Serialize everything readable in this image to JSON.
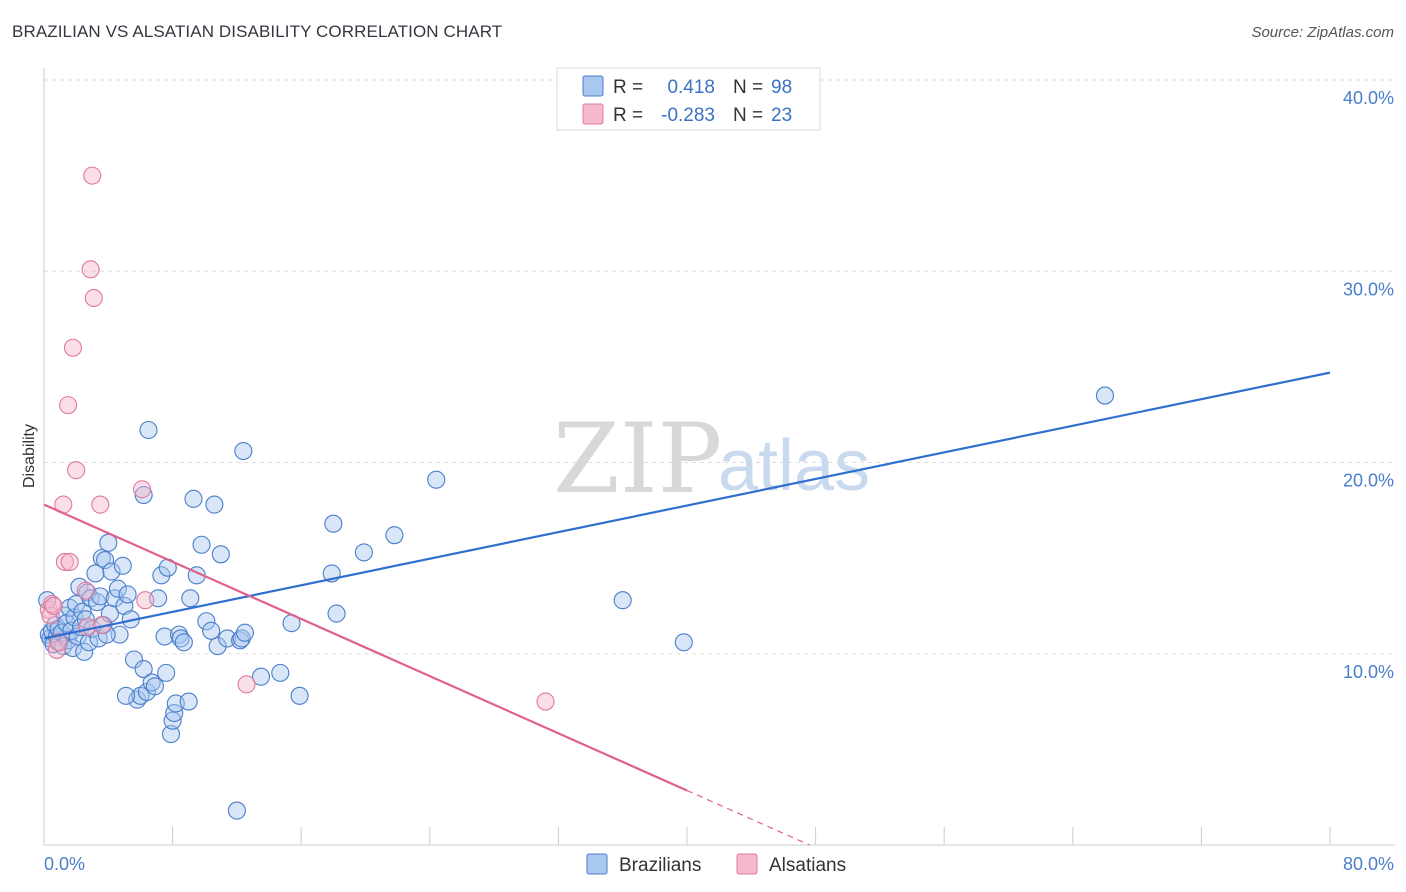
{
  "title": "BRAZILIAN VS ALSATIAN DISABILITY CORRELATION CHART",
  "source": "Source: ZipAtlas.com",
  "colors": {
    "blue_fill": "#a9c8f0",
    "blue_stroke": "#4a7ecb",
    "blue_line": "#2f6fd0",
    "pink_fill": "#f5b9cb",
    "pink_stroke": "#e07a9c",
    "pink_line": "#e0608a",
    "grid": "#dddddd",
    "tick_text": "#4a7ecb"
  },
  "watermark": {
    "zip": "ZIP",
    "atlas": "atlas"
  },
  "legend": {
    "rows": [
      {
        "r_label": "R =",
        "r_value": "0.418",
        "n_label": "N =",
        "n_value": "98",
        "series": "Brazilians"
      },
      {
        "r_label": "R =",
        "r_value": "-0.283",
        "n_label": "N =",
        "n_value": "23",
        "series": "Alsatians"
      }
    ]
  },
  "chart_data": {
    "type": "scatter",
    "title": "BRAZILIAN VS ALSATIAN DISABILITY CORRELATION CHART",
    "xlabel": "",
    "ylabel": "Disability",
    "xlim": [
      0,
      80
    ],
    "ylim": [
      0,
      40
    ],
    "x_tick_labels": [
      "0.0%",
      "80.0%"
    ],
    "y_ticks": [
      10,
      20,
      30,
      40
    ],
    "y_tick_labels": [
      "10.0%",
      "20.0%",
      "30.0%",
      "40.0%"
    ],
    "legend_position": "bottom-center",
    "series": [
      {
        "name": "Brazilians",
        "color": "#a9c8f0",
        "trend": {
          "x": [
            0,
            80
          ],
          "y": [
            10.8,
            24.7
          ],
          "dashed_from": null
        },
        "points": [
          [
            0.3,
            11.0
          ],
          [
            0.4,
            10.8
          ],
          [
            0.5,
            11.2
          ],
          [
            0.6,
            10.5
          ],
          [
            0.7,
            11.5
          ],
          [
            0.8,
            10.9
          ],
          [
            0.9,
            11.3
          ],
          [
            1.0,
            10.6
          ],
          [
            1.1,
            11.1
          ],
          [
            1.2,
            10.4
          ],
          [
            1.3,
            12.0
          ],
          [
            1.4,
            11.6
          ],
          [
            1.5,
            10.7
          ],
          [
            1.6,
            12.4
          ],
          [
            1.7,
            11.2
          ],
          [
            1.8,
            10.3
          ],
          [
            1.9,
            11.9
          ],
          [
            2.0,
            12.6
          ],
          [
            2.1,
            10.9
          ],
          [
            2.2,
            13.5
          ],
          [
            2.3,
            11.4
          ],
          [
            2.4,
            12.2
          ],
          [
            2.5,
            10.1
          ],
          [
            2.6,
            11.8
          ],
          [
            2.7,
            13.2
          ],
          [
            2.8,
            10.6
          ],
          [
            2.9,
            12.9
          ],
          [
            3.0,
            11.3
          ],
          [
            3.2,
            14.2
          ],
          [
            3.3,
            12.7
          ],
          [
            3.4,
            10.8
          ],
          [
            3.5,
            13.0
          ],
          [
            3.6,
            15.0
          ],
          [
            3.7,
            11.5
          ],
          [
            3.8,
            14.9
          ],
          [
            4.0,
            15.8
          ],
          [
            4.1,
            12.1
          ],
          [
            4.2,
            14.3
          ],
          [
            4.4,
            12.9
          ],
          [
            4.6,
            13.4
          ],
          [
            4.7,
            11.0
          ],
          [
            4.9,
            14.6
          ],
          [
            5.0,
            12.5
          ],
          [
            5.2,
            13.1
          ],
          [
            5.4,
            11.8
          ],
          [
            5.6,
            9.7
          ],
          [
            5.8,
            7.6
          ],
          [
            6.0,
            7.8
          ],
          [
            6.2,
            9.2
          ],
          [
            6.4,
            8.0
          ],
          [
            6.5,
            21.7
          ],
          [
            6.7,
            8.5
          ],
          [
            6.9,
            8.3
          ],
          [
            7.1,
            12.9
          ],
          [
            7.3,
            14.1
          ],
          [
            7.5,
            10.9
          ],
          [
            7.7,
            14.5
          ],
          [
            7.9,
            5.8
          ],
          [
            8.0,
            6.5
          ],
          [
            8.1,
            6.9
          ],
          [
            8.2,
            7.4
          ],
          [
            8.4,
            11.0
          ],
          [
            8.5,
            10.8
          ],
          [
            8.7,
            10.6
          ],
          [
            9.0,
            7.5
          ],
          [
            9.1,
            12.9
          ],
          [
            9.3,
            18.1
          ],
          [
            9.5,
            14.1
          ],
          [
            9.8,
            15.7
          ],
          [
            10.1,
            11.7
          ],
          [
            10.4,
            11.2
          ],
          [
            10.6,
            17.8
          ],
          [
            10.8,
            10.4
          ],
          [
            11.0,
            15.2
          ],
          [
            11.4,
            10.8
          ],
          [
            12.2,
            10.7
          ],
          [
            12.3,
            10.8
          ],
          [
            12.4,
            20.6
          ],
          [
            12.5,
            11.1
          ],
          [
            13.5,
            8.8
          ],
          [
            14.7,
            9.0
          ],
          [
            15.4,
            11.6
          ],
          [
            15.9,
            7.8
          ],
          [
            17.9,
            14.2
          ],
          [
            18.0,
            16.8
          ],
          [
            18.2,
            12.1
          ],
          [
            19.9,
            15.3
          ],
          [
            21.8,
            16.2
          ],
          [
            24.4,
            19.1
          ],
          [
            36.0,
            12.8
          ],
          [
            39.8,
            10.6
          ],
          [
            6.2,
            18.3
          ],
          [
            5.1,
            7.8
          ],
          [
            3.9,
            11.0
          ],
          [
            12.0,
            1.8
          ],
          [
            7.6,
            9.0
          ],
          [
            66.0,
            23.5
          ],
          [
            0.2,
            12.8
          ]
        ]
      },
      {
        "name": "Alsatians",
        "color": "#f5b9cb",
        "trend": {
          "x": [
            0,
            80
          ],
          "y": [
            17.8,
            -12.1
          ],
          "solid_until_x": 40
        },
        "points": [
          [
            0.3,
            12.3
          ],
          [
            0.4,
            12.0
          ],
          [
            0.5,
            12.6
          ],
          [
            0.8,
            10.2
          ],
          [
            1.2,
            17.8
          ],
          [
            1.3,
            14.8
          ],
          [
            1.5,
            23.0
          ],
          [
            1.6,
            14.8
          ],
          [
            1.8,
            26.0
          ],
          [
            2.0,
            19.6
          ],
          [
            2.6,
            13.3
          ],
          [
            2.7,
            11.4
          ],
          [
            2.9,
            30.1
          ],
          [
            3.0,
            35.0
          ],
          [
            3.1,
            28.6
          ],
          [
            3.5,
            17.8
          ],
          [
            3.6,
            11.5
          ],
          [
            6.1,
            18.6
          ],
          [
            6.3,
            12.8
          ],
          [
            12.6,
            8.4
          ],
          [
            31.2,
            7.5
          ],
          [
            0.6,
            12.5
          ],
          [
            0.9,
            10.6
          ]
        ]
      }
    ]
  }
}
